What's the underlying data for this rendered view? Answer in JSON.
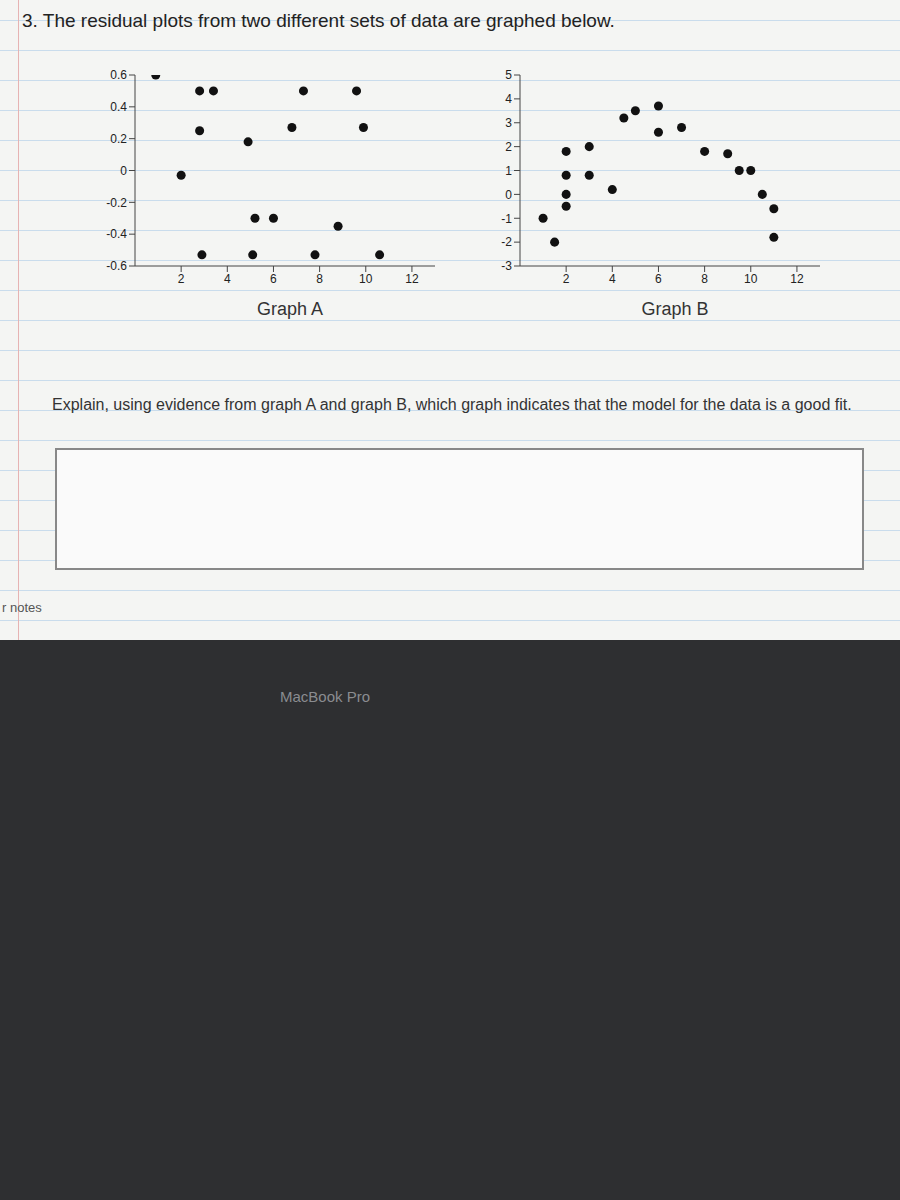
{
  "question": "3. The residual plots from two different sets of data are graphed below.",
  "prompt": "Explain, using evidence from graph A and graph B, which graph indicates that the model for the data is a good fit.",
  "side_note": "r notes",
  "device_label": "MacBook Pro",
  "chart_data": [
    {
      "type": "scatter",
      "title": "Graph A",
      "x": [
        0.9,
        2.8,
        3.4,
        7.3,
        9.6,
        2.8,
        4.9,
        6.8,
        9.9,
        2,
        5.2,
        6,
        8.8,
        2.9,
        5.1,
        7.8,
        10.6
      ],
      "values": [
        0.6,
        0.5,
        0.5,
        0.5,
        0.5,
        0.25,
        0.18,
        0.27,
        0.27,
        -0.03,
        -0.3,
        -0.3,
        -0.35,
        -0.53,
        -0.53,
        -0.53,
        -0.53
      ],
      "xlim": [
        0,
        13
      ],
      "ylim": [
        -0.6,
        0.6
      ],
      "xticks": [
        2,
        4,
        6,
        8,
        10,
        12
      ],
      "yticks": [
        -0.6,
        -0.4,
        -0.2,
        0,
        0.2,
        0.4,
        0.6
      ],
      "color": "#111111",
      "marker": "circle"
    },
    {
      "type": "scatter",
      "title": "Graph B",
      "x": [
        1,
        1.5,
        2,
        2,
        2,
        2,
        3,
        3,
        4,
        4.5,
        5,
        6,
        6,
        7,
        8,
        9,
        9.5,
        10,
        10.5,
        11,
        11
      ],
      "values": [
        -1,
        -2,
        -0.5,
        0,
        0.8,
        1.8,
        0.8,
        2,
        0.2,
        3.2,
        3.5,
        3.7,
        2.6,
        2.8,
        1.8,
        1.7,
        1,
        1,
        0,
        -0.6,
        -1.8
      ],
      "xlim": [
        0,
        13
      ],
      "ylim": [
        -3,
        5
      ],
      "xticks": [
        2,
        4,
        6,
        8,
        10,
        12
      ],
      "yticks": [
        -3,
        -2,
        -1,
        0,
        1,
        2,
        3,
        4,
        5
      ],
      "color": "#111111",
      "marker": "circle"
    }
  ]
}
